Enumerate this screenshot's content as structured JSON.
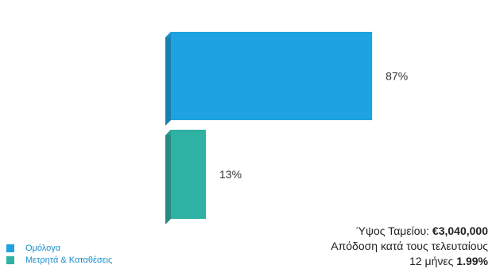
{
  "chart_data": {
    "type": "bar",
    "orientation": "horizontal-3d",
    "categories": [
      "Ομόλογα",
      "Μετρητά & Καταθέσεις"
    ],
    "values": [
      87,
      13
    ],
    "value_labels": [
      "87%",
      "13%"
    ],
    "colors": [
      "#1fa3e0",
      "#2fb1a4"
    ],
    "legend": {
      "placement": "bottom-left",
      "items": [
        {
          "label": "Ομόλογα",
          "color": "#1fa3e0"
        },
        {
          "label": "Μετρητά & Καταθέσεις",
          "color": "#2fb1a4"
        }
      ]
    }
  },
  "fund_info": {
    "size_label": "Ύψος Ταμείου:",
    "size_value": "€3,040,000",
    "return_label_line1": "Απόδοση κατά τους τελευταίους",
    "return_label_line2": "12 μήνες",
    "return_value": "1.99%"
  }
}
